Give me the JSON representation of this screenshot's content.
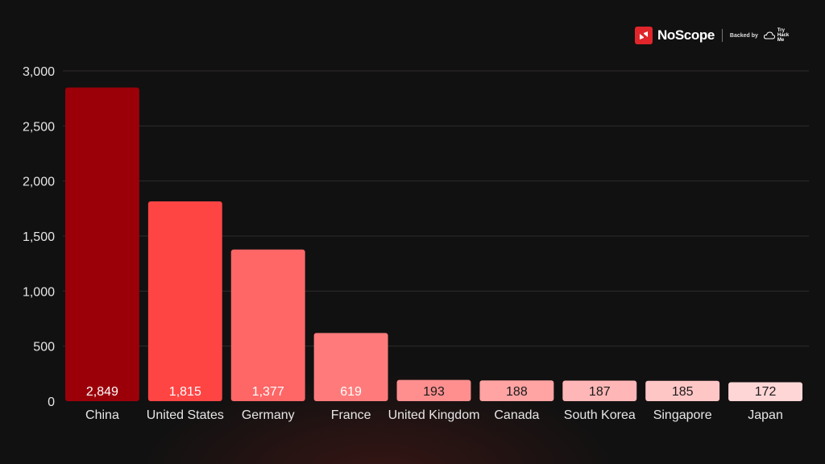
{
  "brand": {
    "name": "NoScope",
    "backed_by": "Backed by",
    "partner": [
      "Try",
      "Hack",
      "Me"
    ]
  },
  "colors": {
    "background": "#121111",
    "gridline": "#2e2c2c",
    "tick_text": "#e6e6e6",
    "bars": [
      "#9b0009",
      "#ff4444",
      "#ff6666",
      "#ff7b7b",
      "#ff8f8f",
      "#ffa3a3",
      "#ffb6b6",
      "#ffc6c6",
      "#ffd6d6"
    ],
    "label_dark": "#1a1a1a",
    "label_light": "#ffffff"
  },
  "chart_data": {
    "type": "bar",
    "categories": [
      "China",
      "United States",
      "Germany",
      "France",
      "United Kingdom",
      "Canada",
      "South Korea",
      "Singapore",
      "Japan"
    ],
    "values": [
      2849,
      1815,
      1377,
      619,
      193,
      188,
      187,
      185,
      172
    ],
    "value_labels": [
      "2,849",
      "1,815",
      "1,377",
      "619",
      "193",
      "188",
      "187",
      "185",
      "172"
    ],
    "yticks": [
      0,
      500,
      1000,
      1500,
      2000,
      2500,
      3000
    ],
    "ytick_labels": [
      "0",
      "500",
      "1,000",
      "1,500",
      "2,000",
      "2,500",
      "3,000"
    ],
    "ylim": [
      0,
      3000
    ],
    "title": "",
    "xlabel": "",
    "ylabel": "",
    "grid": true
  }
}
